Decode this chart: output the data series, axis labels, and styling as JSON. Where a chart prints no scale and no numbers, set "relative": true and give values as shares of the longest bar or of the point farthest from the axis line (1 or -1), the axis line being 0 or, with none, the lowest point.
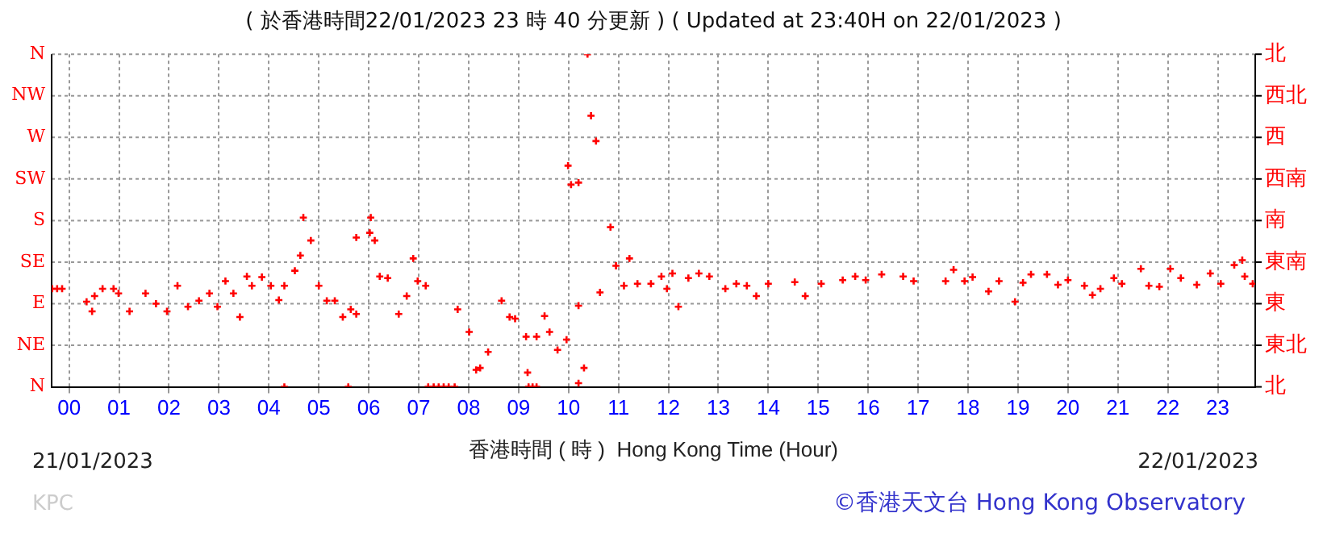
{
  "chart_data": {
    "type": "scatter",
    "title": "( 於香港時間22/01/2023 23 時 40 分更新 ) ( Updated at 23:40H on 22/01/2023 )",
    "xlabel": "香港時間 ( 時 )  Hong Kong Time (Hour)",
    "annotations": [
      "21/01/2023",
      "22/01/2023",
      "KPC",
      "©香港天文台 Hong Kong Observatory",
      "N",
      "NE",
      "E",
      "SE",
      "S",
      "SW",
      "W",
      "NW",
      "N",
      "北",
      "東北",
      "東",
      "東南",
      "南",
      "西南",
      "西",
      "西北",
      "北"
    ],
    "relative": true,
    "series": [
      {
        "color": "#ff0000",
        "x": [
          -0.34,
          -0.24,
          -0.14,
          0.35,
          0.46,
          0.51,
          0.67,
          0.89,
          0.99,
          1.21,
          1.53,
          1.74,
          1.96,
          2.17,
          2.38,
          2.6,
          2.81,
          2.97,
          3.13,
          3.29,
          3.42,
          3.56,
          3.66,
          3.86,
          4.04,
          4.2,
          4.31,
          4.31,
          4.52,
          4.63,
          4.69,
          4.84,
          5.0,
          5.16,
          5.32,
          5.48,
          5.59,
          5.64,
          5.75,
          5.75,
          6.02,
          6.04,
          6.12,
          6.22,
          6.38,
          6.6,
          6.76,
          6.89,
          6.98,
          7.14,
          7.19,
          7.3,
          7.4,
          7.5,
          7.6,
          7.72,
          7.78,
          8.01,
          8.15,
          8.23,
          8.39,
          8.66,
          8.82,
          8.93,
          9.15,
          9.18,
          9.2,
          9.28,
          9.36,
          9.36,
          9.52,
          9.62,
          9.78,
          9.96,
          9.99,
          10.05,
          10.2,
          10.2,
          10.2,
          10.31,
          10.38,
          10.45,
          10.55,
          10.63,
          10.84,
          10.95,
          11.11,
          11.22,
          11.38,
          11.65,
          11.86,
          11.97,
          12.08,
          12.2,
          12.4,
          12.61,
          12.82,
          13.14,
          13.36,
          13.57,
          13.76,
          14.0,
          14.53,
          14.74,
          15.06,
          15.49,
          15.74,
          15.95,
          16.27,
          16.7,
          16.91,
          17.55,
          17.71,
          17.93,
          18.09,
          18.41,
          18.62,
          18.94,
          19.1,
          19.26,
          19.58,
          19.8,
          20.0,
          20.33,
          20.49,
          20.65,
          20.92,
          21.08,
          21.46,
          21.62,
          21.83,
          22.05,
          22.26,
          22.58,
          22.85,
          23.06,
          23.33,
          23.49,
          23.54,
          23.7
        ],
        "values": [
          0.295,
          0.295,
          0.295,
          0.256,
          0.227,
          0.273,
          0.295,
          0.295,
          0.281,
          0.227,
          0.281,
          0.25,
          0.227,
          0.304,
          0.241,
          0.259,
          0.281,
          0.241,
          0.318,
          0.281,
          0.21,
          0.332,
          0.304,
          0.33,
          0.304,
          0.261,
          0,
          0.304,
          0.349,
          0.395,
          0.509,
          0.44,
          0.304,
          0.259,
          0.259,
          0.21,
          0,
          0.233,
          0.219,
          0.449,
          0.463,
          0.509,
          0.44,
          0.332,
          0.327,
          0.219,
          0.273,
          0.386,
          0.318,
          0.304,
          0,
          0,
          0,
          0,
          0,
          0,
          0.233,
          0.165,
          0.051,
          0.057,
          0.105,
          0.259,
          0.21,
          0.205,
          0.151,
          0.043,
          0,
          0,
          0,
          0.151,
          0.213,
          0.165,
          0.111,
          0.142,
          0.665,
          0.608,
          0.614,
          0.244,
          0.011,
          0.057,
          1,
          0.815,
          0.739,
          0.284,
          0.48,
          0.364,
          0.304,
          0.386,
          0.31,
          0.31,
          0.332,
          0.295,
          0.341,
          0.241,
          0.327,
          0.341,
          0.332,
          0.295,
          0.31,
          0.304,
          0.273,
          0.31,
          0.315,
          0.273,
          0.31,
          0.321,
          0.332,
          0.321,
          0.338,
          0.332,
          0.318,
          0.318,
          0.352,
          0.318,
          0.33,
          0.287,
          0.318,
          0.256,
          0.313,
          0.338,
          0.338,
          0.307,
          0.321,
          0.304,
          0.276,
          0.295,
          0.327,
          0.31,
          0.355,
          0.304,
          0.301,
          0.355,
          0.327,
          0.307,
          0.341,
          0.31,
          0.366,
          0.381,
          0.332,
          0.31
        ]
      }
    ],
    "xlim": [
      -0.35,
      23.75
    ],
    "xticks": [
      {
        "value": 0,
        "label": "00"
      },
      {
        "value": 1,
        "label": "01"
      },
      {
        "value": 2,
        "label": "02"
      },
      {
        "value": 3,
        "label": "03"
      },
      {
        "value": 4,
        "label": "04"
      },
      {
        "value": 5,
        "label": "05"
      },
      {
        "value": 6,
        "label": "06"
      },
      {
        "value": 7,
        "label": "07"
      },
      {
        "value": 8,
        "label": "08"
      },
      {
        "value": 9,
        "label": "09"
      },
      10,
      11,
      12,
      13,
      14,
      15,
      16,
      17,
      18,
      19,
      20,
      21,
      22,
      23
    ],
    "grid": true,
    "legend": false,
    "marker": "cross"
  }
}
